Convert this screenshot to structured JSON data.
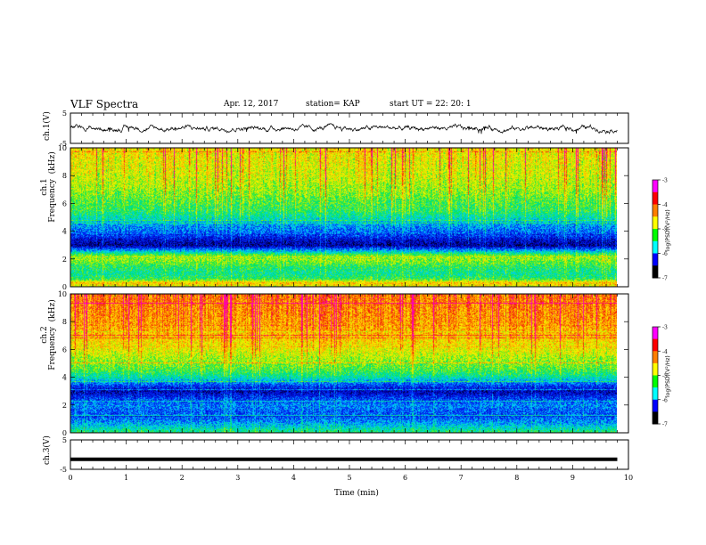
{
  "header": {
    "title": "VLF Spectra",
    "date": "Apr. 12, 2017",
    "station": "station= KAP",
    "start_ut": "start  UT =   22: 20: 1"
  },
  "xlabel": "Time  (min)",
  "panel_labels": {
    "ch1_wave": "ch.1(V)",
    "ch1_spec": "ch.1\nFrequency  (kHz)",
    "ch2_spec": "ch.2\nFrequency  (kHz)",
    "ch3_wave": "ch.3(V)"
  },
  "colorbar": {
    "label": "log(PSD)(V²/Hz)",
    "ticks": [
      "-3",
      "-4",
      "-5",
      "-6",
      "-7"
    ],
    "colors": [
      "#ff00ff",
      "#ff0000",
      "#ff7f00",
      "#ffff00",
      "#00ff00",
      "#00ffff",
      "#0000ff",
      "#000000"
    ]
  },
  "chart_data": [
    {
      "type": "line",
      "name": "ch.1 waveform",
      "ylabel": "ch.1(V)",
      "ylim": [
        -5,
        5
      ],
      "yticks": [
        "5",
        "-5"
      ],
      "xlim": [
        0,
        10
      ],
      "trace_range": [
        -1.5,
        1.5
      ],
      "trace_end": 9.8
    },
    {
      "type": "heatmap",
      "name": "ch.1 spectrogram",
      "ylabel": "Frequency  (kHz)",
      "ylim": [
        0,
        10
      ],
      "yticks": [
        "0",
        "2",
        "4",
        "6",
        "8",
        "10"
      ],
      "xlim": [
        0,
        10
      ],
      "data_end": 9.8,
      "freq_profile_log_psd": [
        [
          0.0,
          -4.5
        ],
        [
          0.3,
          -4.0
        ],
        [
          0.6,
          -5.0
        ],
        [
          1.0,
          -5.2
        ],
        [
          1.5,
          -5.0
        ],
        [
          2.0,
          -4.6
        ],
        [
          2.3,
          -4.8
        ],
        [
          2.6,
          -5.6
        ],
        [
          3.0,
          -6.6
        ],
        [
          3.4,
          -6.4
        ],
        [
          3.8,
          -6.0
        ],
        [
          4.5,
          -5.7
        ],
        [
          5.0,
          -5.3
        ],
        [
          5.5,
          -5.0
        ],
        [
          6.0,
          -4.9
        ],
        [
          7.0,
          -4.6
        ],
        [
          8.0,
          -4.4
        ],
        [
          9.0,
          -4.3
        ],
        [
          10.0,
          -4.2
        ]
      ]
    },
    {
      "type": "heatmap",
      "name": "ch.2 spectrogram",
      "ylabel": "Frequency  (kHz)",
      "ylim": [
        0,
        10
      ],
      "yticks": [
        "0",
        "2",
        "4",
        "6",
        "8",
        "10"
      ],
      "xlim": [
        0,
        10
      ],
      "data_end": 9.8,
      "freq_profile_log_psd": [
        [
          0.0,
          -5.0
        ],
        [
          0.5,
          -5.5
        ],
        [
          1.0,
          -5.9
        ],
        [
          1.5,
          -6.0
        ],
        [
          2.0,
          -5.8
        ],
        [
          2.5,
          -6.1
        ],
        [
          3.0,
          -6.5
        ],
        [
          3.5,
          -6.0
        ],
        [
          4.0,
          -5.3
        ],
        [
          4.5,
          -4.9
        ],
        [
          5.0,
          -4.7
        ],
        [
          6.0,
          -4.3
        ],
        [
          7.0,
          -4.0
        ],
        [
          8.0,
          -3.8
        ],
        [
          9.0,
          -3.7
        ],
        [
          10.0,
          -3.6
        ]
      ]
    },
    {
      "type": "line",
      "name": "ch.3 waveform",
      "ylabel": "ch.3(V)",
      "ylim": [
        -5,
        5
      ],
      "yticks": [
        "5",
        "-5"
      ],
      "xlim": [
        0,
        10
      ],
      "xlabel": "Time  (min)",
      "xticks": [
        "0",
        "1",
        "2",
        "3",
        "4",
        "5",
        "6",
        "7",
        "8",
        "9",
        "10"
      ],
      "trace_level": -1.6
    }
  ]
}
